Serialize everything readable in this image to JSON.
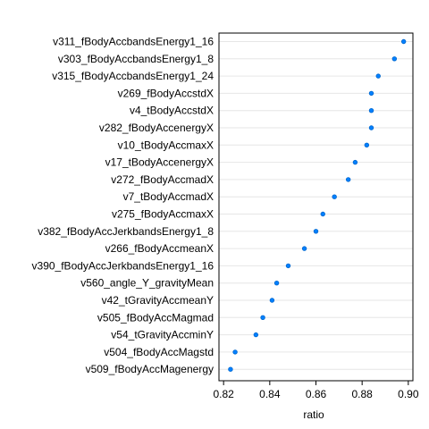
{
  "chart_data": {
    "type": "dotplot",
    "xlabel": "ratio",
    "xlim": [
      0.818,
      0.902
    ],
    "xticks": [
      0.82,
      0.84,
      0.86,
      0.88,
      0.9
    ],
    "xtick_labels": [
      "0.82",
      "0.84",
      "0.86",
      "0.88",
      "0.90"
    ],
    "grid": "horizontal guide lines",
    "categories": [
      "v311_fBodyAccbandsEnergy1_16",
      "v303_fBodyAccbandsEnergy1_8",
      "v315_fBodyAccbandsEnergy1_24",
      "v269_fBodyAccstdX",
      "v4_tBodyAccstdX",
      "v282_fBodyAccenergyX",
      "v10_tBodyAccmaxX",
      "v17_tBodyAccenergyX",
      "v272_fBodyAccmadX",
      "v7_tBodyAccmadX",
      "v275_fBodyAccmaxX",
      "v382_fBodyAccJerkbandsEnergy1_8",
      "v266_fBodyAccmeanX",
      "v390_fBodyAccJerkbandsEnergy1_16",
      "v560_angle_Y_gravityMean",
      "v42_tGravityAccmeanY",
      "v505_fBodyAccMagmad",
      "v54_tGravityAccminY",
      "v504_fBodyAccMagstd",
      "v509_fBodyAccMagenergy"
    ],
    "values": [
      0.898,
      0.894,
      0.887,
      0.884,
      0.884,
      0.884,
      0.882,
      0.877,
      0.874,
      0.868,
      0.863,
      0.86,
      0.855,
      0.848,
      0.843,
      0.841,
      0.837,
      0.834,
      0.825,
      0.823
    ],
    "point_color": "#0080ff"
  }
}
